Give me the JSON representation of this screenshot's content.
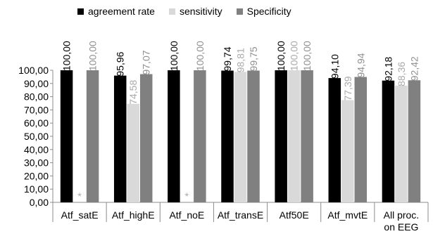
{
  "chart_data": {
    "type": "bar",
    "categories": [
      "Atf_satE",
      "Atf_highE",
      "Atf_noE",
      "Atf_transE",
      "Atf50E",
      "Atf_mvtE",
      "All proc.\non EEG"
    ],
    "series": [
      {
        "name": "agreement rate",
        "color": "#000000",
        "label_color": "#000000",
        "values": [
          100.0,
          95.96,
          100.0,
          99.74,
          100.0,
          94.1,
          92.18
        ],
        "labels": [
          "100,00",
          "95,96",
          "100,00",
          "99,74",
          "100,00",
          "94,10",
          "92,18"
        ]
      },
      {
        "name": "sensitivity",
        "color": "#d9d9d9",
        "label_color": "#aaaaaa",
        "values": [
          null,
          74.58,
          null,
          98.81,
          100.0,
          77.39,
          88.36
        ],
        "labels": [
          "*",
          "74,58",
          "*",
          "98,81",
          "100,00",
          "77,39",
          "88,36"
        ]
      },
      {
        "name": "Specificity",
        "color": "#808080",
        "label_color": "#909090",
        "values": [
          100.0,
          97.07,
          100.0,
          99.75,
          100.0,
          94.94,
          92.42
        ],
        "labels": [
          "100,00",
          "97,07",
          "100,00",
          "99,75",
          "100,00",
          "94,94",
          "92,42"
        ]
      }
    ],
    "ylim": [
      0,
      100
    ],
    "yticks": [
      "0,00",
      "10,00",
      "20,00",
      "30,00",
      "40,00",
      "50,00",
      "60,00",
      "70,00",
      "80,00",
      "90,00",
      "100,00"
    ],
    "legend_position": "top",
    "grid": false
  }
}
